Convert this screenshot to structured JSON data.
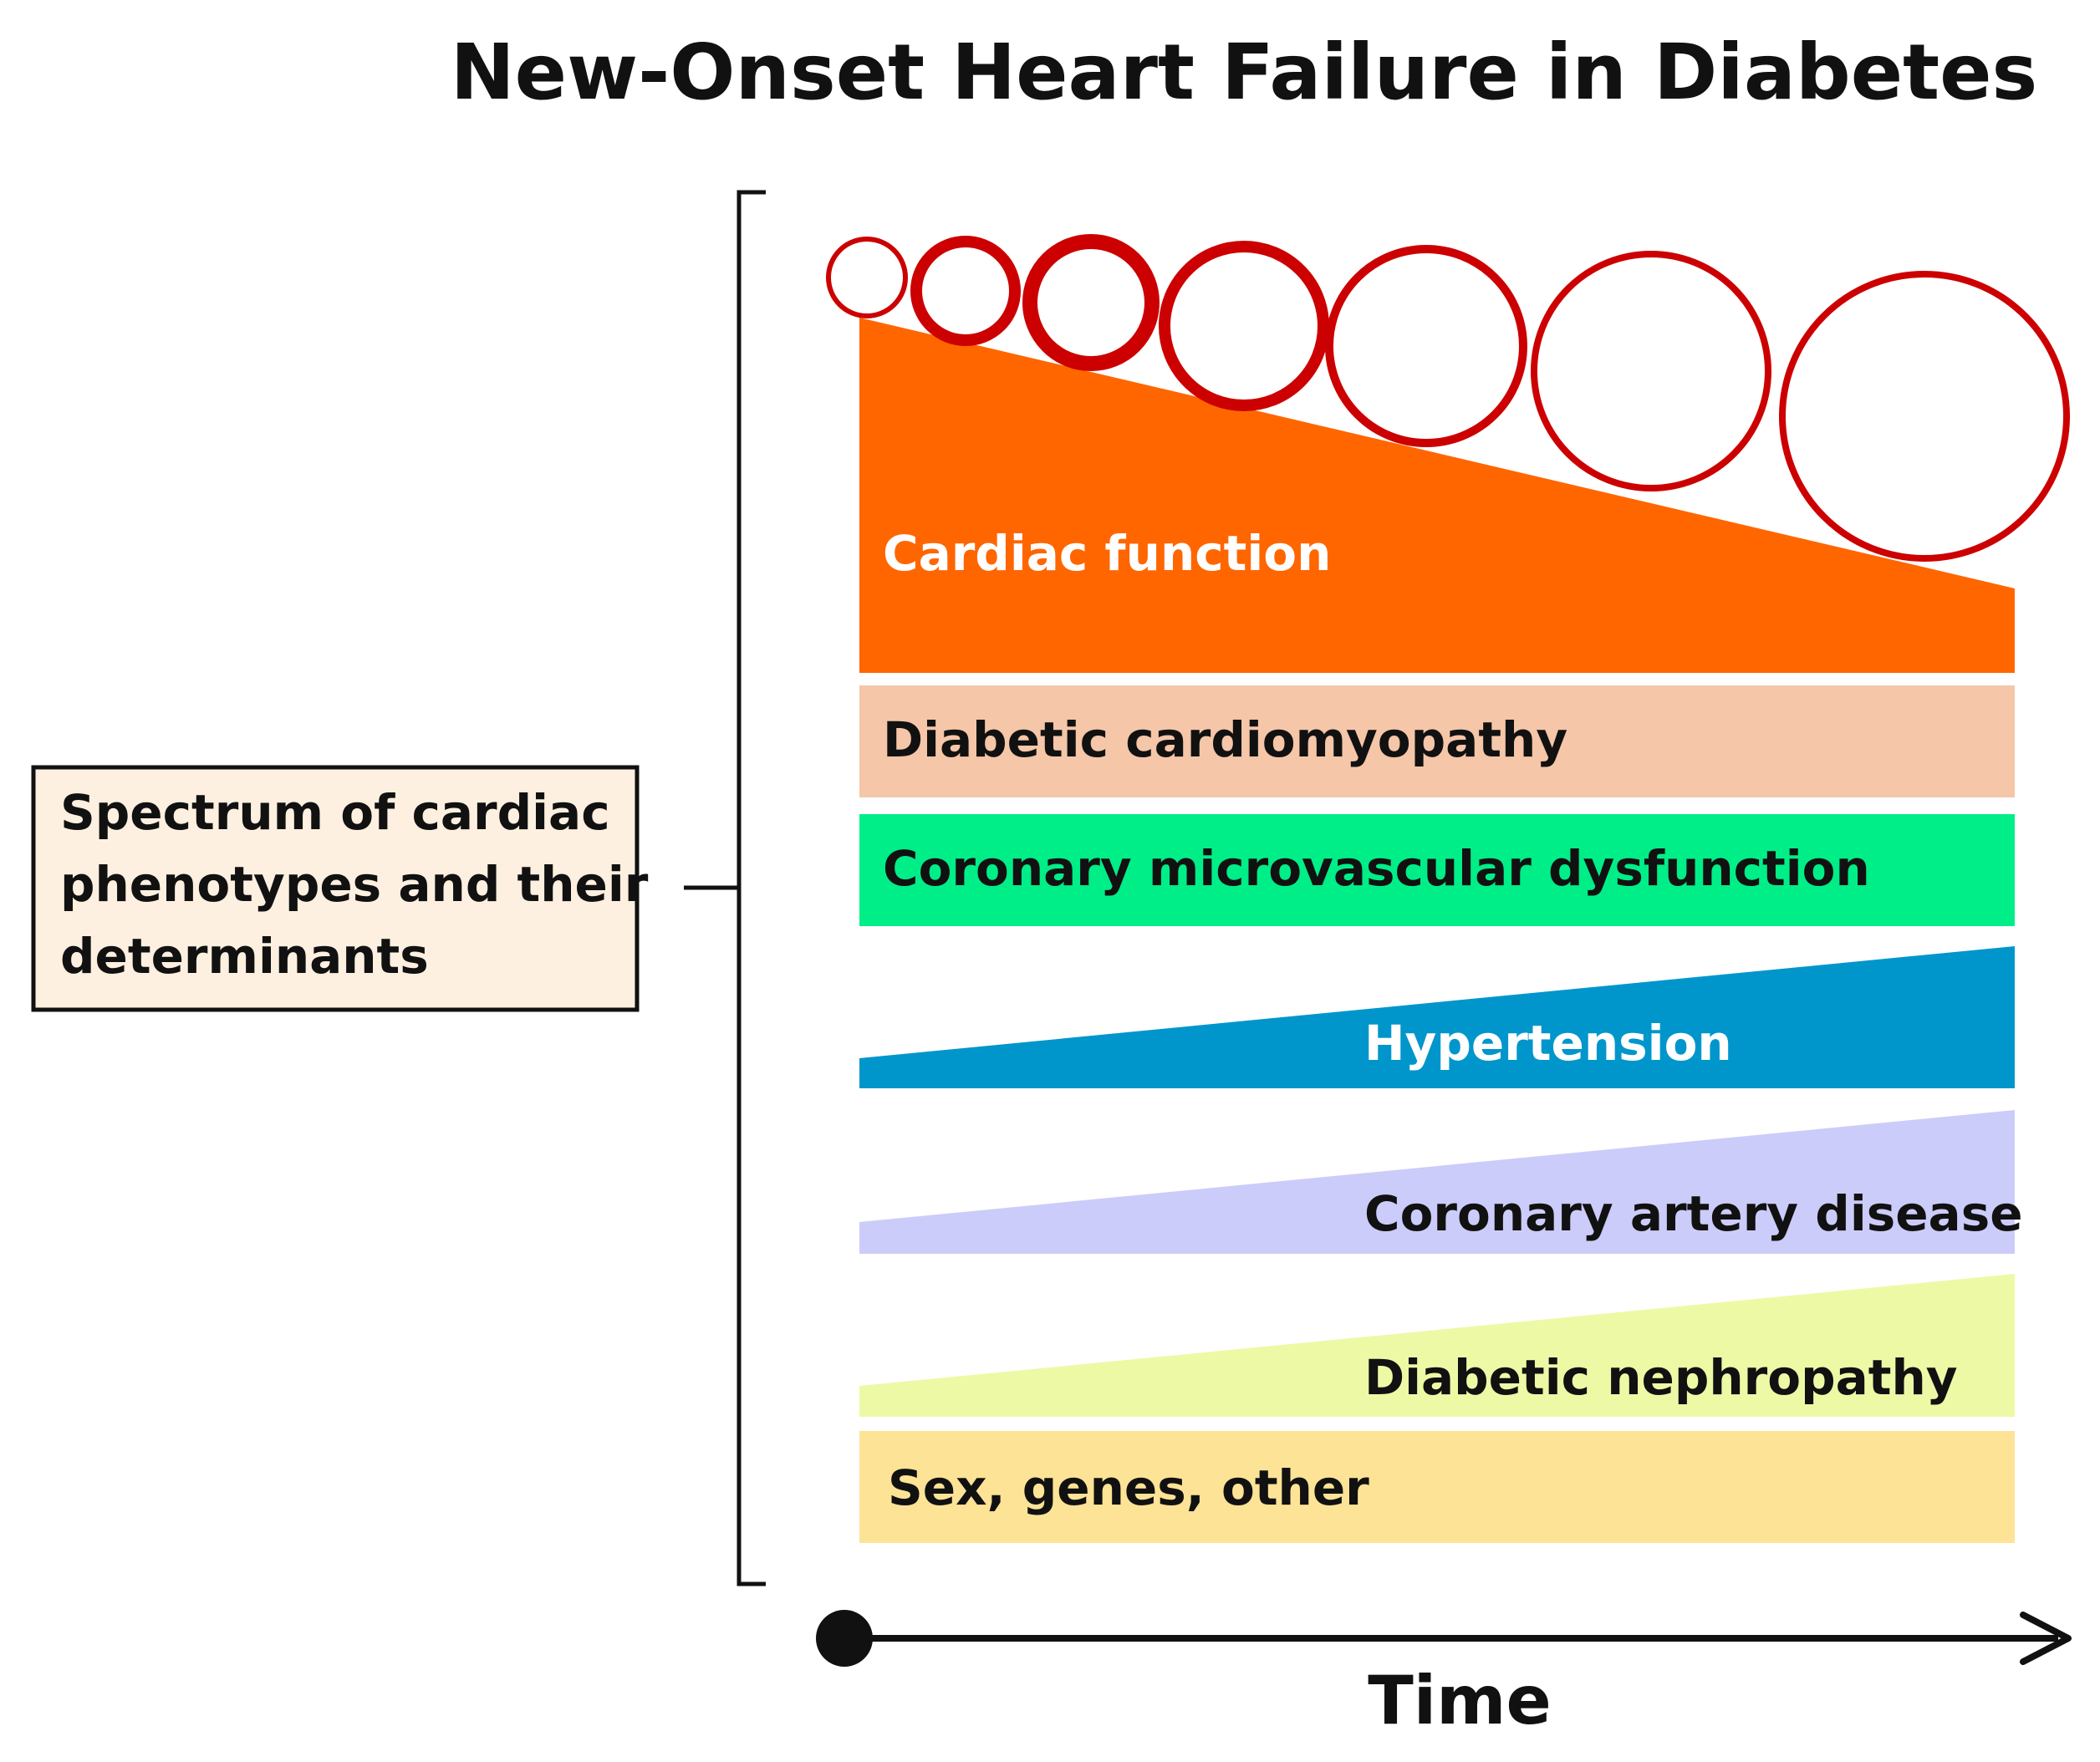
{
  "title": "New-Onset Heart Failure in Diabetes",
  "spectrum_box": {
    "lines": [
      "Spectrum of cardiac",
      "phenotypes and their",
      "determinants"
    ],
    "fill": "#fdf0e0",
    "border": "#111111"
  },
  "bands": {
    "cardiac_function": {
      "label": "Cardiac function",
      "color": "#ff6600",
      "text_color": "#ffffff",
      "trend": "decreasing"
    },
    "diabetic_cardiomyopathy": {
      "label": "Diabetic cardiomyopathy",
      "color": "#f5c6a8",
      "text_color": "#111111"
    },
    "coronary_microvascular": {
      "label": "Coronary microvascular dysfunction",
      "color": "#00ee88",
      "text_color": "#111111"
    },
    "hypertension": {
      "label": "Hypertension",
      "color": "#0096cc",
      "text_color": "#ffffff",
      "trend": "increasing"
    },
    "coronary_artery": {
      "label": "Coronary artery disease",
      "color": "#ccccfa",
      "text_color": "#111111",
      "trend": "increasing"
    },
    "diabetic_nephropathy": {
      "label": "Diabetic nephropathy",
      "color": "#eef9a6",
      "text_color": "#111111",
      "trend": "increasing"
    },
    "sex_genes": {
      "label": "Sex, genes, other",
      "color": "#fde396",
      "text_color": "#111111"
    }
  },
  "heart_circles": {
    "count": 7,
    "stroke": "#cc0000",
    "meaning": "progressive cardiac dilation over time"
  },
  "time_axis": {
    "label": "Time"
  },
  "icons": [
    "heart-size-circle-icon",
    "timeline-start-dot-icon",
    "arrowhead-icon"
  ]
}
